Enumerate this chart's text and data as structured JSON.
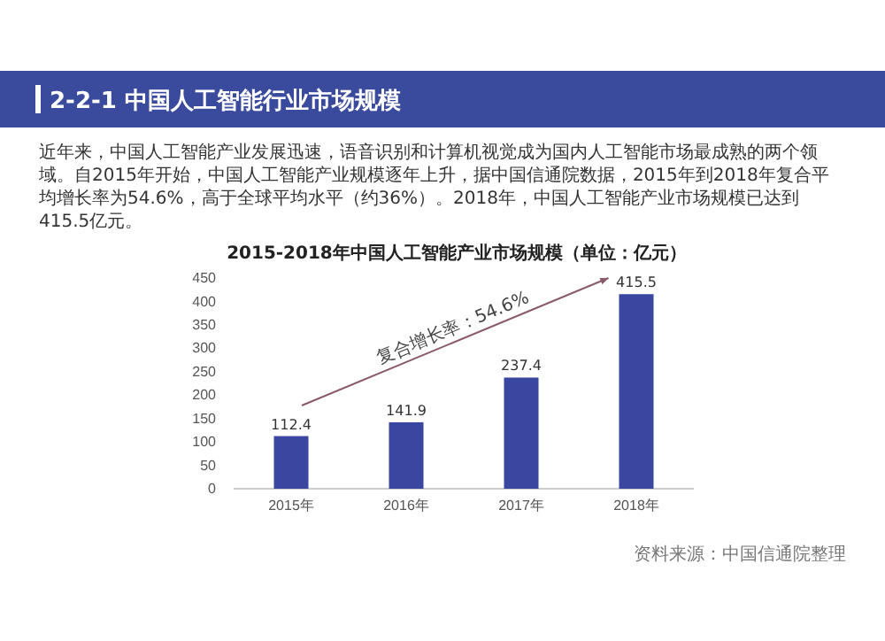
{
  "chart_data": {
    "type": "bar",
    "title": "2015-2018年中国人工智能产业市场规模（单位：亿元）",
    "categories": [
      "2015年",
      "2016年",
      "2017年",
      "2018年"
    ],
    "values": [
      112.4,
      141.9,
      237.4,
      415.5
    ],
    "color": "#3a47a0",
    "ylim": [
      0,
      450
    ],
    "yticks": [
      0,
      50,
      100,
      150,
      200,
      250,
      300,
      350,
      400,
      450
    ],
    "data_labels": true,
    "grid": false,
    "annotations": [
      "2-2-1  中国人工智能行业市场规模",
      "近年来，中国人工智能产业发展迅速，语音识别和计算机视觉成为国内人工智能市场最成熟的两个领域。自2015年开始，中国人工智能产业规模逐年上升，据中国信通院数据，2015年到2018年复合平均增长率为54.6%，高于全球平均水平（约36%）。2018年，中国人工智能产业市场规模已达到415.5亿元。",
      "复合增长率：54.6%",
      "资料来源：中国信通院整理"
    ]
  }
}
